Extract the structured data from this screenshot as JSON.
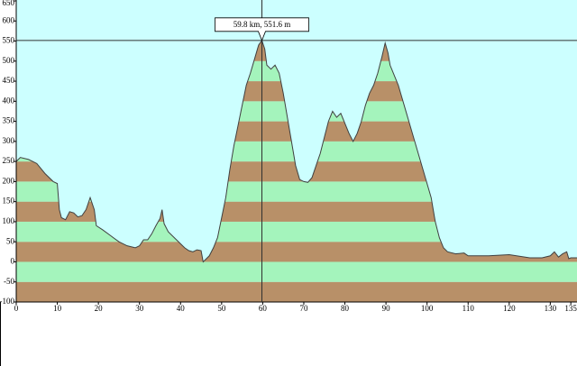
{
  "chart_data": {
    "type": "area",
    "x": [
      0,
      1,
      3,
      5,
      7,
      9,
      10,
      10.5,
      11,
      12,
      13,
      14,
      15,
      16,
      17,
      18,
      19,
      19.5,
      21,
      23,
      25,
      27,
      29,
      30,
      31,
      32,
      33,
      34,
      35,
      35.5,
      36,
      37,
      39,
      41,
      42,
      43,
      44,
      45,
      45.5,
      46,
      47,
      48,
      49,
      50,
      51,
      52,
      53,
      54,
      55,
      56,
      57,
      58,
      59,
      59.8,
      60.5,
      61,
      62,
      63,
      64,
      65,
      66,
      67,
      68,
      69,
      70,
      71,
      72,
      73,
      74,
      75,
      76,
      77,
      78,
      79,
      80,
      81,
      82,
      83,
      84,
      85,
      86,
      87,
      88,
      89,
      89.8,
      90.5,
      91,
      93,
      95,
      97,
      99,
      101,
      102,
      103,
      104,
      105,
      107,
      109,
      110,
      115,
      120,
      125,
      128,
      130,
      131,
      132,
      133,
      134,
      134.5,
      135,
      136.5
    ],
    "values": [
      250,
      260,
      255,
      245,
      220,
      200,
      195,
      130,
      110,
      105,
      125,
      122,
      112,
      115,
      130,
      160,
      130,
      90,
      80,
      65,
      50,
      40,
      35,
      40,
      55,
      55,
      70,
      90,
      108,
      130,
      95,
      75,
      55,
      35,
      28,
      25,
      30,
      28,
      0,
      5,
      15,
      35,
      60,
      110,
      160,
      230,
      290,
      340,
      390,
      440,
      470,
      505,
      540,
      551.6,
      530,
      490,
      480,
      490,
      470,
      420,
      360,
      300,
      240,
      205,
      200,
      198,
      210,
      240,
      270,
      310,
      350,
      375,
      360,
      370,
      345,
      320,
      300,
      320,
      350,
      390,
      420,
      440,
      470,
      510,
      545,
      520,
      490,
      440,
      370,
      300,
      230,
      160,
      100,
      60,
      35,
      25,
      20,
      22,
      15,
      15,
      18,
      10,
      10,
      15,
      25,
      12,
      20,
      25,
      8,
      10,
      10
    ],
    "xlim": [
      0,
      136.5
    ],
    "ylim": [
      -100,
      650
    ],
    "xticks": [
      0,
      10,
      20,
      30,
      40,
      50,
      60,
      70,
      80,
      90,
      100,
      110,
      120,
      130,
      135
    ],
    "yticks": [
      -100,
      -50,
      0,
      50,
      100,
      150,
      200,
      250,
      300,
      350,
      400,
      450,
      500,
      550,
      600,
      650
    ],
    "band_step": 50,
    "band_colors": [
      "#b89068",
      "#a4f4bc"
    ],
    "background": "#ccffff",
    "line_color": "#404040",
    "cursor": {
      "x": 59.8,
      "y": 551.6,
      "label": "59.8 km, 551.6 m"
    }
  }
}
